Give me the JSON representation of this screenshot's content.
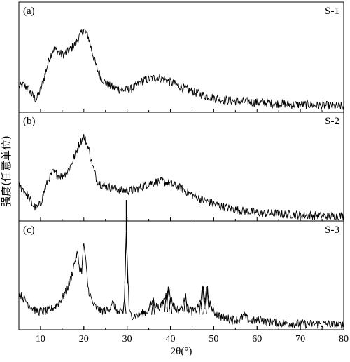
{
  "chart_data": {
    "type": "line",
    "xlabel": "2θ(°)",
    "ylabel": "强度(任意单位)",
    "xlim": [
      5,
      80
    ],
    "x_ticks": [
      10,
      20,
      30,
      40,
      50,
      60,
      70,
      80
    ],
    "x_tick_labels": [
      "10",
      "20",
      "30",
      "40",
      "50",
      "60",
      "70",
      "80"
    ],
    "panels": [
      {
        "label": "(a)",
        "series_name": "S-1",
        "ylim": [
          0,
          1
        ],
        "x": [
          5,
          6,
          7,
          8,
          9,
          10,
          11,
          12,
          13,
          14,
          15,
          16,
          17,
          18,
          19,
          20,
          21,
          22,
          23,
          24,
          25,
          26,
          27,
          28,
          29,
          30,
          31,
          32,
          33,
          34,
          35,
          36,
          37,
          38,
          39,
          40,
          42,
          44,
          46,
          48,
          50,
          52,
          54,
          56,
          58,
          60,
          62,
          64,
          66,
          68,
          70,
          72,
          74,
          76,
          78,
          80
        ],
        "y": [
          0.23,
          0.25,
          0.22,
          0.15,
          0.1,
          0.2,
          0.35,
          0.52,
          0.62,
          0.6,
          0.56,
          0.58,
          0.62,
          0.67,
          0.75,
          0.82,
          0.75,
          0.58,
          0.42,
          0.33,
          0.27,
          0.24,
          0.22,
          0.21,
          0.2,
          0.2,
          0.21,
          0.24,
          0.28,
          0.3,
          0.31,
          0.32,
          0.33,
          0.32,
          0.3,
          0.28,
          0.24,
          0.2,
          0.17,
          0.14,
          0.12,
          0.1,
          0.09,
          0.08,
          0.08,
          0.07,
          0.07,
          0.06,
          0.06,
          0.05,
          0.05,
          0.05,
          0.04,
          0.04,
          0.03,
          0.03
        ]
      },
      {
        "label": "(b)",
        "series_name": "S-2",
        "ylim": [
          0,
          1
        ],
        "x": [
          5,
          6,
          7,
          8,
          9,
          10,
          11,
          12,
          13,
          14,
          15,
          16,
          17,
          18,
          19,
          20,
          21,
          22,
          23,
          24,
          25,
          26,
          27,
          28,
          29,
          30,
          31,
          32,
          33,
          34,
          35,
          36,
          37,
          38,
          39,
          40,
          42,
          44,
          46,
          48,
          50,
          52,
          54,
          56,
          58,
          60,
          62,
          64,
          66,
          68,
          70,
          72,
          74,
          76,
          78,
          80
        ],
        "y": [
          0.33,
          0.3,
          0.24,
          0.15,
          0.1,
          0.15,
          0.3,
          0.42,
          0.48,
          0.45,
          0.44,
          0.47,
          0.55,
          0.66,
          0.78,
          0.85,
          0.74,
          0.55,
          0.4,
          0.35,
          0.33,
          0.32,
          0.31,
          0.3,
          0.29,
          0.29,
          0.29,
          0.3,
          0.32,
          0.34,
          0.36,
          0.37,
          0.38,
          0.38,
          0.37,
          0.36,
          0.32,
          0.27,
          0.22,
          0.18,
          0.15,
          0.12,
          0.1,
          0.08,
          0.07,
          0.06,
          0.05,
          0.05,
          0.04,
          0.04,
          0.03,
          0.03,
          0.03,
          0.02,
          0.02,
          0.02
        ]
      },
      {
        "label": "(c)",
        "series_name": "S-3",
        "ylim": [
          0,
          1
        ],
        "x": [
          5,
          6,
          7,
          8,
          9,
          10,
          11,
          12,
          13,
          14,
          15,
          16,
          17,
          18,
          18.5,
          19,
          19.5,
          20,
          20.5,
          21,
          22,
          23,
          24,
          25,
          26,
          26.5,
          27,
          28,
          29,
          29.4,
          29.8,
          30.5,
          31,
          32,
          33,
          34,
          35,
          36,
          37,
          38,
          39,
          39.5,
          40,
          41,
          42,
          43,
          43.5,
          44,
          45,
          46,
          47,
          47.5,
          48,
          48.5,
          49,
          50,
          52,
          54,
          56,
          57,
          58,
          60,
          61,
          62,
          64,
          66,
          68,
          70,
          72,
          74,
          76,
          78,
          80
        ],
        "y": [
          0.36,
          0.3,
          0.25,
          0.2,
          0.17,
          0.16,
          0.16,
          0.17,
          0.2,
          0.24,
          0.3,
          0.38,
          0.5,
          0.7,
          0.77,
          0.62,
          0.58,
          0.88,
          0.65,
          0.4,
          0.25,
          0.19,
          0.17,
          0.17,
          0.2,
          0.26,
          0.22,
          0.15,
          0.14,
          0.3,
          1.0,
          0.14,
          0.12,
          0.12,
          0.13,
          0.15,
          0.18,
          0.28,
          0.2,
          0.22,
          0.34,
          0.42,
          0.3,
          0.2,
          0.18,
          0.22,
          0.35,
          0.2,
          0.16,
          0.18,
          0.28,
          0.42,
          0.3,
          0.4,
          0.25,
          0.15,
          0.1,
          0.08,
          0.07,
          0.12,
          0.07,
          0.06,
          0.09,
          0.05,
          0.05,
          0.04,
          0.04,
          0.03,
          0.03,
          0.03,
          0.03,
          0.02,
          0.02
        ]
      }
    ],
    "grid": false,
    "legend": "none"
  }
}
